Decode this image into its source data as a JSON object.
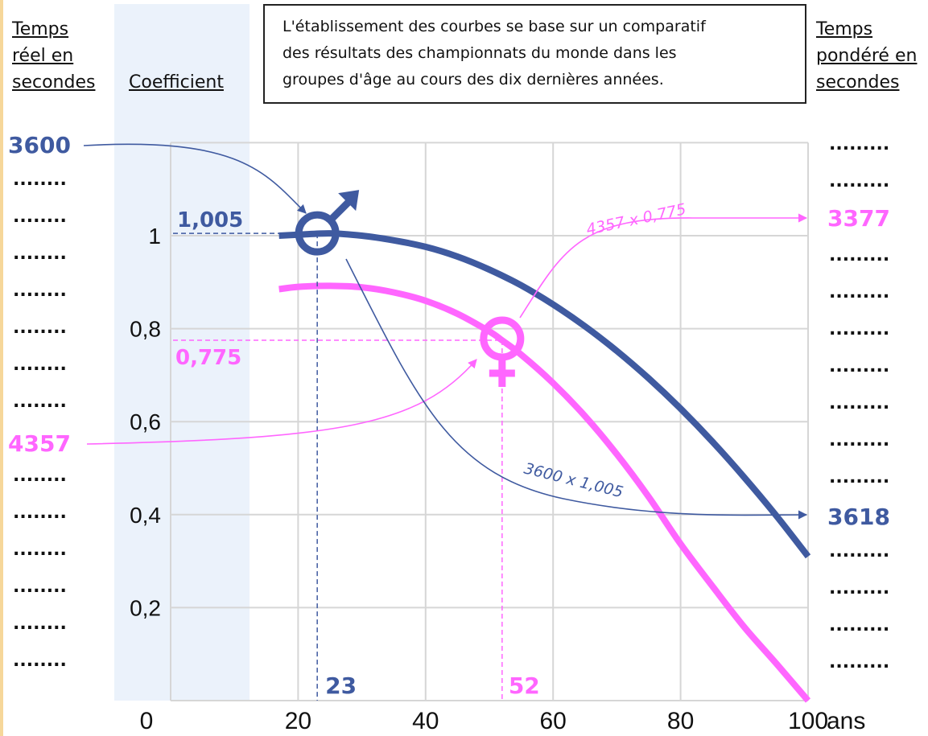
{
  "headers": {
    "left": [
      "Temps",
      "réel en",
      "secondes"
    ],
    "coefficient": "Coefficient",
    "right": [
      "Temps",
      "pondéré en",
      "secondes"
    ]
  },
  "note": [
    "L'établissement des courbes se base sur un comparatif",
    "des résultats des championnats du monde dans les",
    "groupes d'âge au cours des dix dernières années."
  ],
  "colors": {
    "men": "#3f5aa0",
    "women": "#ff66ff",
    "grid": "#d6d6d6",
    "coef_band": "#ebf2fb",
    "border": "#f6d79a"
  },
  "left_column": {
    "top_value": "3600",
    "pink_value": "4357",
    "placeholder": "........"
  },
  "right_column": {
    "pink_value": "3377",
    "blue_value": "3618",
    "placeholder": "........."
  },
  "chart_data": {
    "type": "line",
    "xlim": [
      0,
      100
    ],
    "ylim": [
      0,
      1.2
    ],
    "x_ticks": [
      "0",
      "20",
      "40",
      "60",
      "80",
      "100"
    ],
    "x_unit": "ans",
    "y_ticks": [
      "0,2",
      "0,4",
      "0,6",
      "0,8",
      "1"
    ],
    "series": [
      {
        "key": "men",
        "x": [
          17,
          20,
          25,
          30,
          35,
          40,
          45,
          50,
          55,
          60,
          65,
          70,
          75,
          80,
          85,
          90,
          95,
          100
        ],
        "values": [
          1.0,
          1.002,
          1.005,
          1.0,
          0.99,
          0.976,
          0.955,
          0.927,
          0.893,
          0.852,
          0.805,
          0.752,
          0.693,
          0.628,
          0.557,
          0.48,
          0.398,
          0.31
        ]
      },
      {
        "key": "women",
        "x": [
          17,
          20,
          25,
          30,
          35,
          40,
          45,
          50,
          52,
          55,
          60,
          65,
          70,
          75,
          80,
          85,
          90,
          95,
          100
        ],
        "values": [
          0.885,
          0.89,
          0.892,
          0.889,
          0.878,
          0.86,
          0.832,
          0.794,
          0.775,
          0.744,
          0.683,
          0.612,
          0.53,
          0.438,
          0.337,
          0.246,
          0.158,
          0.08,
          0.0
        ]
      }
    ],
    "annotations": {
      "men_age": "23",
      "men_coef": "1,005",
      "women_age": "52",
      "women_coef": "0,775",
      "men_calc": "3600 x 1,005",
      "women_calc": "4357 x 0,775"
    }
  }
}
